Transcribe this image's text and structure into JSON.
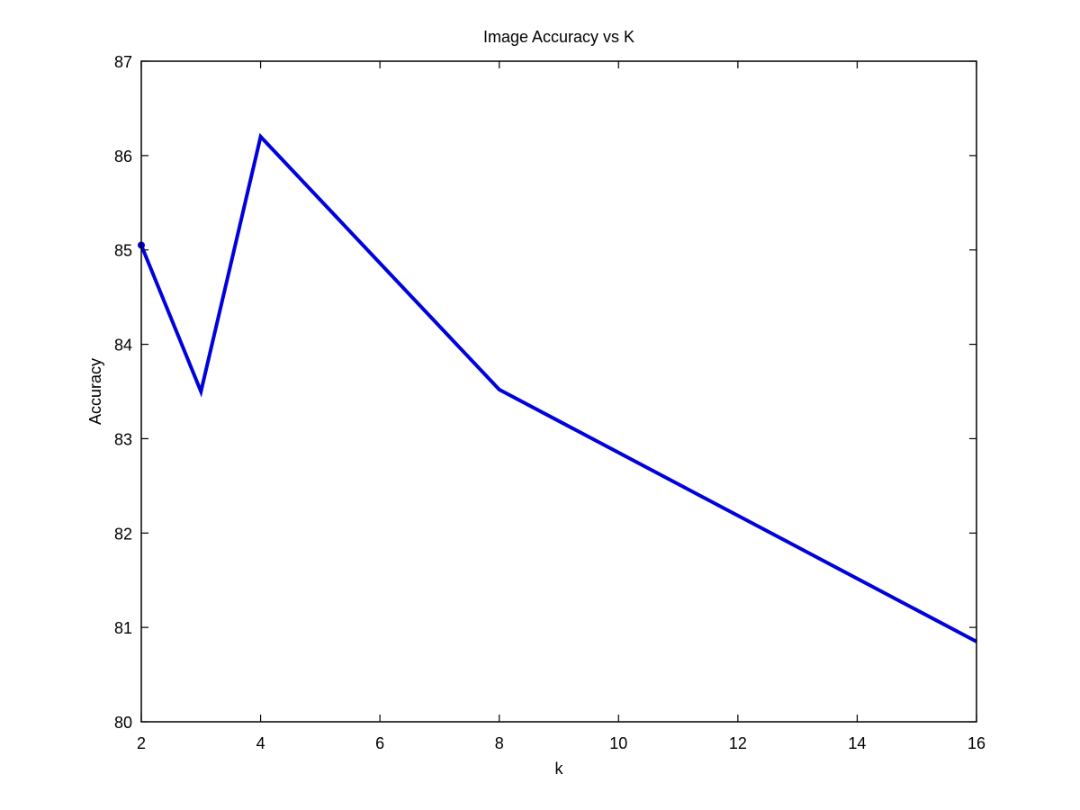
{
  "chart_data": {
    "type": "line",
    "title": "Image Accuracy vs K",
    "xlabel": "k",
    "ylabel": "Accuracy",
    "xlim": [
      2,
      16
    ],
    "ylim": [
      80,
      87
    ],
    "xticks": [
      2,
      4,
      6,
      8,
      10,
      12,
      14,
      16
    ],
    "yticks": [
      80,
      81,
      82,
      83,
      84,
      85,
      86,
      87
    ],
    "grid": false,
    "legend": "none",
    "series": [
      {
        "color": "#0000dd",
        "x": [
          2,
          3,
          4,
          8,
          16
        ],
        "y": [
          85.05,
          83.5,
          86.2,
          83.52,
          80.85
        ]
      }
    ]
  }
}
